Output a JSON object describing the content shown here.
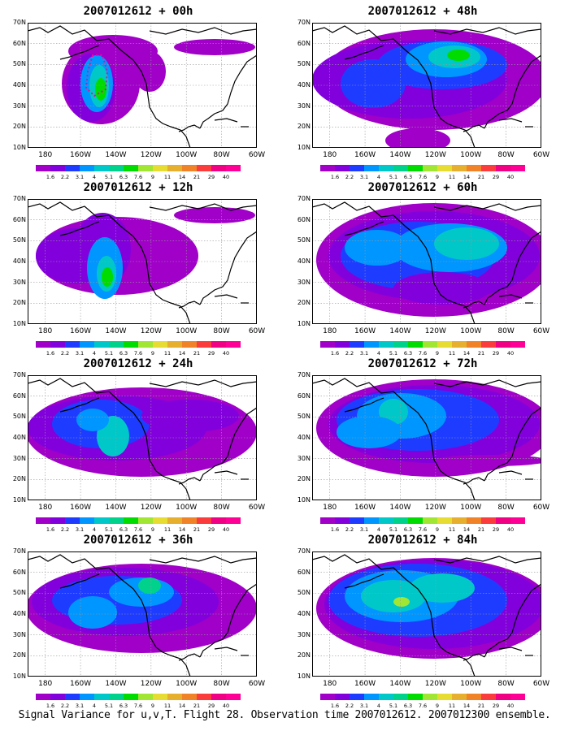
{
  "caption": "Signal Variance for u,v,T. Flight 28. Observation time 2007012612. 2007012300 ensemble.",
  "panels": [
    {
      "title": "2007012612 + 00h"
    },
    {
      "title": "2007012612 + 48h"
    },
    {
      "title": "2007012612 + 12h"
    },
    {
      "title": "2007012612 + 60h"
    },
    {
      "title": "2007012612 + 24h"
    },
    {
      "title": "2007012612 + 72h"
    },
    {
      "title": "2007012612 + 36h"
    },
    {
      "title": "2007012612 + 84h"
    }
  ],
  "lat_labels": [
    "70N",
    "60N",
    "50N",
    "40N",
    "30N",
    "20N",
    "10N"
  ],
  "lon_labels": [
    "180",
    "160W",
    "140W",
    "120W",
    "100W",
    "80W",
    "60W"
  ],
  "colorbar": {
    "levels": [
      "1.6",
      "2.2",
      "3.1",
      "4",
      "5.1",
      "6.3",
      "7.6",
      "9",
      "11",
      "14",
      "21",
      "29",
      "40"
    ],
    "colors": [
      "#a000c8",
      "#8200dc",
      "#1e3cff",
      "#0096ff",
      "#00c8c8",
      "#00d28c",
      "#00dc00",
      "#a0e632",
      "#e6dc32",
      "#e6af2d",
      "#f08228",
      "#fa3c3c",
      "#f00082",
      "#ff0096"
    ]
  },
  "map_extent": {
    "lon_min": -190,
    "lon_max": -60,
    "lat_min": 10,
    "lat_max": 70
  }
}
